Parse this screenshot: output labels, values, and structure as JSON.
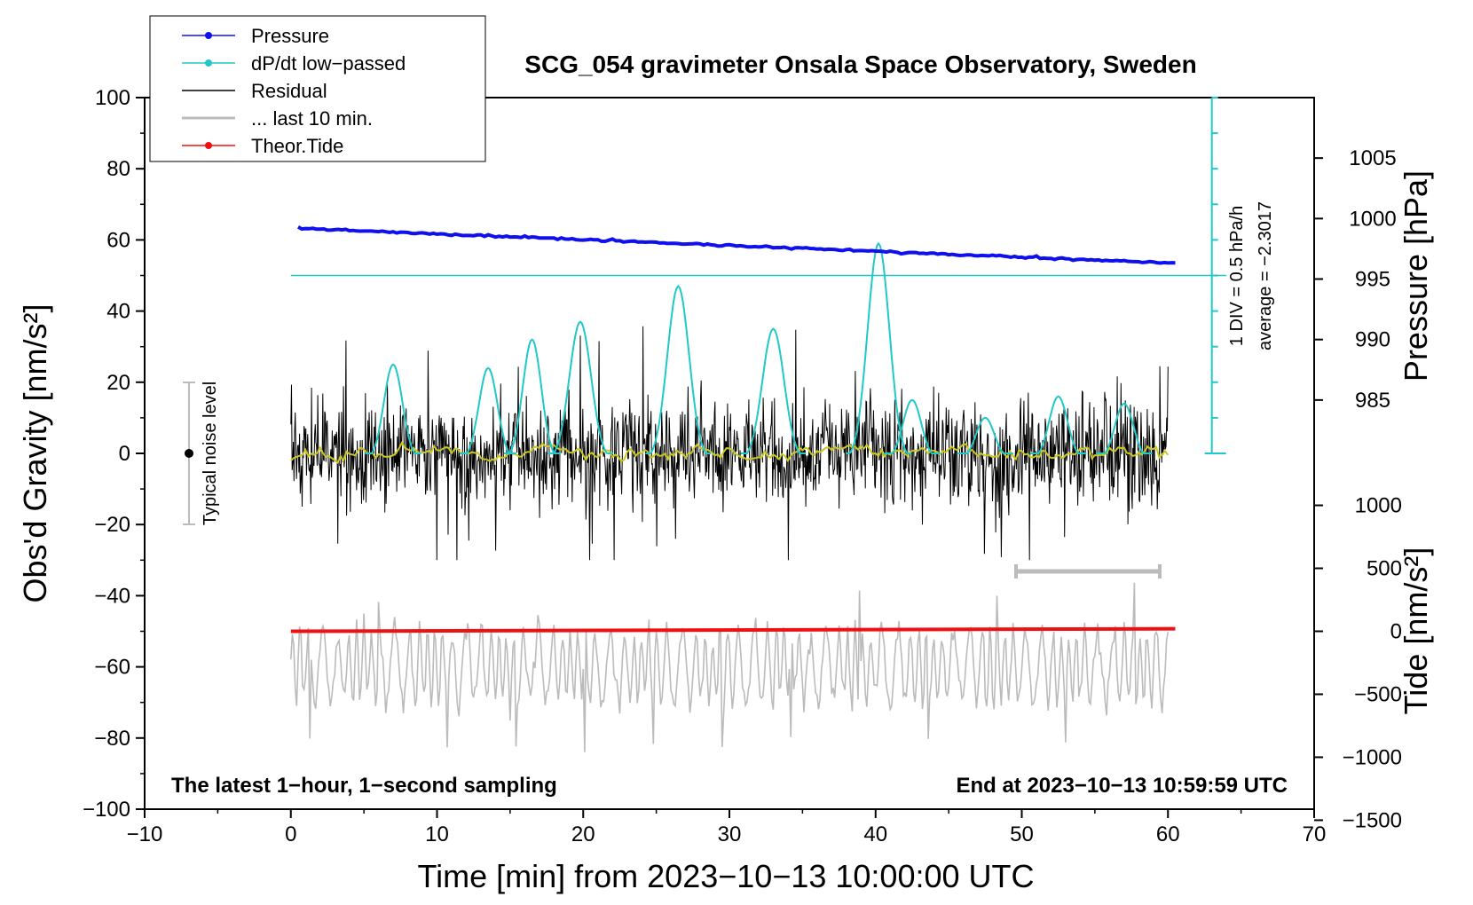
{
  "chart_data": {
    "type": "line",
    "title": "SCG_054 gravimeter Onsala Space Observatory, Sweden",
    "xlabel": "Time [min] from 2023−10−13 10:00:00 UTC",
    "ylabel_left": "Obs'd Gravity [nm/s²]",
    "ylabel_right_top": "Pressure [hPa]",
    "ylabel_right_bottom": "Tide [nm/s²]",
    "xlim": [
      -10,
      70
    ],
    "ylim": [
      -100,
      100
    ],
    "x_ticks": [
      "−10",
      "0",
      "10",
      "20",
      "30",
      "40",
      "50",
      "60",
      "70"
    ],
    "y_ticks": [
      "−100",
      "−80",
      "−60",
      "−40",
      "−20",
      "0",
      "20",
      "40",
      "60",
      "80",
      "100"
    ],
    "pressure_ticks": [
      "1005",
      "1000",
      "995",
      "990",
      "985"
    ],
    "tide_ticks": [
      "1000",
      "500",
      "0",
      "−500",
      "−1000",
      "−1500"
    ],
    "legend": {
      "items": [
        {
          "label": "Pressure",
          "color": "#1010ee",
          "marker": true
        },
        {
          "label": "dP/dt low−passed",
          "color": "#20c8c8",
          "marker": true
        },
        {
          "label": "Residual",
          "color": "#000000",
          "marker": false
        },
        {
          "label": "... last 10 min.",
          "color": "#bbbbbb",
          "marker": false
        },
        {
          "label": "Theor.Tide",
          "color": "#ee1111",
          "marker": true
        }
      ]
    },
    "series": [
      {
        "name": "Pressure",
        "unit": "hPa",
        "start": {
          "x": 0.5,
          "y": 999.2
        },
        "end": {
          "x": 60.5,
          "y": 996.3
        }
      },
      {
        "name": "Theor.Tide",
        "unit": "nm/s²",
        "start": {
          "x": 0,
          "y": 0
        },
        "end": {
          "x": 60.5,
          "y": 20
        }
      },
      {
        "name": "dP/dt low-passed",
        "baseline_y": 50,
        "peaks": [
          {
            "x": 7,
            "y": 27
          },
          {
            "x": 13.5,
            "y": 26
          },
          {
            "x": 16.5,
            "y": 34
          },
          {
            "x": 19.8,
            "y": 39
          },
          {
            "x": 26.5,
            "y": 49
          },
          {
            "x": 33,
            "y": 37
          },
          {
            "x": 40.2,
            "y": 61
          },
          {
            "x": 42.5,
            "y": 17
          },
          {
            "x": 47.5,
            "y": 12
          },
          {
            "x": 52.5,
            "y": 18
          },
          {
            "x": 57,
            "y": 16
          }
        ]
      },
      {
        "name": "Residual",
        "x_range": [
          0,
          60
        ],
        "center": 0,
        "typical_range": [
          -20,
          20
        ]
      },
      {
        "name": "... last 10 min.",
        "x_range": [
          0,
          60
        ],
        "center": -60,
        "typical_range": [
          -75,
          -40
        ]
      }
    ],
    "pressure_scale": {
      "div_label": "1 DIV = 0.5 hPa/h",
      "average_label": "average = −2.3017"
    },
    "noise_label": "Typical noise level",
    "bottom_left_note": "The latest 1−hour, 1−second sampling",
    "bottom_right_note": "End at 2023−10−13 10:59:59 UTC",
    "colors": {
      "pressure": "#1010ee",
      "dpdt": "#20c8c8",
      "residual": "#000000",
      "residual_mean": "#c8c820",
      "last10": "#bbbbbb",
      "tide": "#ee1111"
    }
  }
}
